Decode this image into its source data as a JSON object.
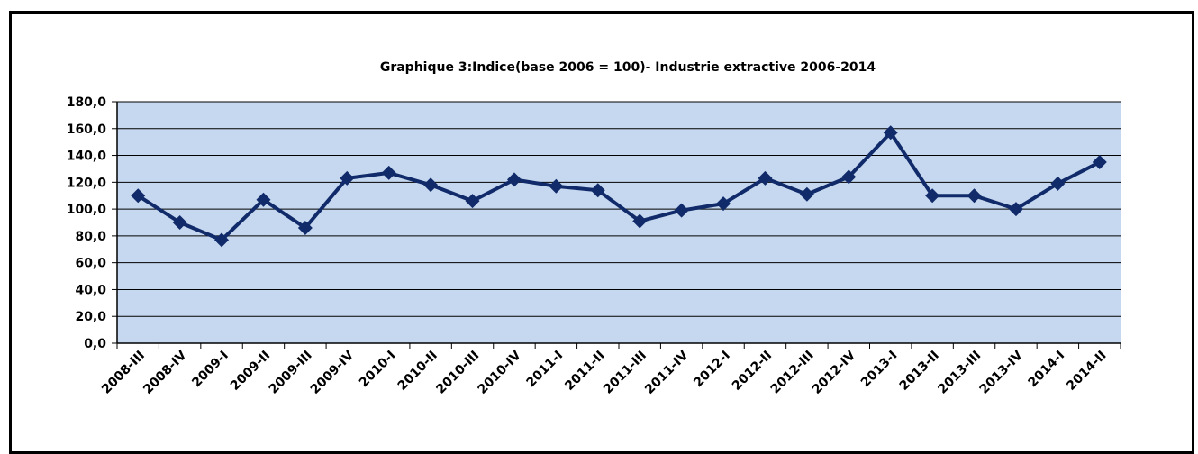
{
  "chart_data": {
    "type": "line",
    "title": "Graphique 3:Indice(base 2006 = 100)- Industrie extractive 2006-2014",
    "xlabel": "",
    "ylabel": "",
    "categories": [
      "2008-III",
      "2008-IV",
      "2009-I",
      "2009-II",
      "2009-III",
      "2009-IV",
      "2010-I",
      "2010-II",
      "2010-III",
      "2010-IV",
      "2011-I",
      "2011-II",
      "2011-III",
      "2011-IV",
      "2012-I",
      "2012-II",
      "2012-III",
      "2012-IV",
      "2013-I",
      "2013-II",
      "2013-III",
      "2013-IV",
      "2014-I",
      "2014-II"
    ],
    "series": [
      {
        "values": [
          110,
          90,
          77,
          107,
          86,
          123,
          127,
          118,
          106,
          122,
          117,
          114,
          91,
          99,
          104,
          123,
          111,
          124,
          157,
          110,
          110,
          100,
          119,
          135
        ]
      }
    ],
    "yticks": [
      "0,0",
      "20,0",
      "40,0",
      "60,0",
      "80,0",
      "100,0",
      "120,0",
      "140,0",
      "160,0",
      "180,0"
    ],
    "ylim": [
      0,
      180
    ],
    "grid": true,
    "colors": {
      "plot_bg": "#c5d8ef",
      "line": "#102a6a",
      "grid": "#000000"
    }
  }
}
